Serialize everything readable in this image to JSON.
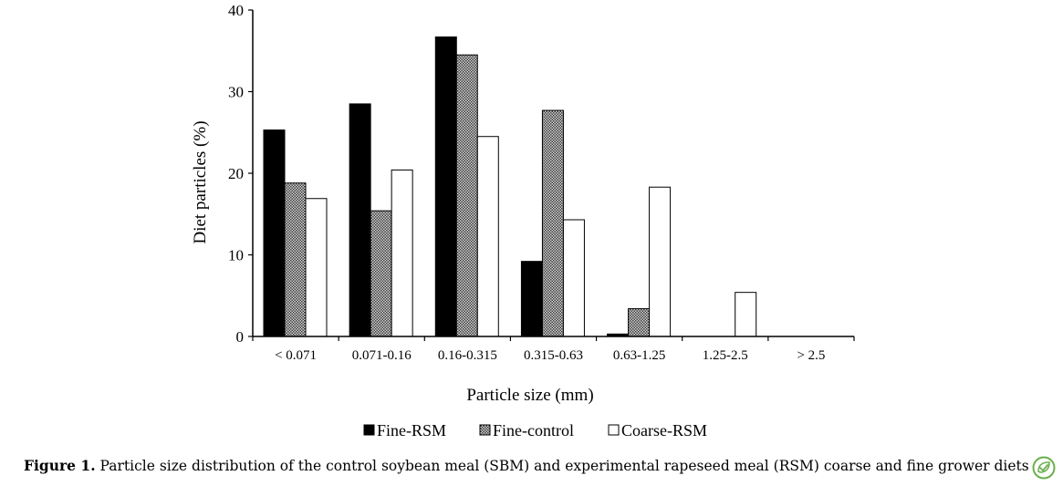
{
  "chart_data": {
    "type": "bar",
    "title": "",
    "xlabel": "Particle size (mm)",
    "ylabel": "Diet particles (%)",
    "ylim": [
      0,
      40
    ],
    "yticks": [
      0,
      10,
      20,
      30,
      40
    ],
    "grid": false,
    "legend_position": "bottom",
    "categories": [
      "< 0.071",
      "0.071-0.16",
      "0.16-0.315",
      "0.315-0.63",
      "0.63-1.25",
      "1.25-2.5",
      "> 2.5"
    ],
    "series": [
      {
        "name": "Fine-RSM",
        "values": [
          25.3,
          28.5,
          36.7,
          9.2,
          0.3,
          0,
          0
        ],
        "fill": "#000000",
        "pattern": "solid"
      },
      {
        "name": "Fine-control",
        "values": [
          18.8,
          15.4,
          34.5,
          27.7,
          3.4,
          0,
          0
        ],
        "fill": "#8c8c8c",
        "pattern": "checker"
      },
      {
        "name": "Coarse-RSM",
        "values": [
          16.9,
          20.4,
          24.5,
          14.3,
          18.3,
          5.4,
          0
        ],
        "fill": "#ffffff",
        "pattern": "outline"
      }
    ]
  },
  "caption": {
    "label": "Figure 1.",
    "text": " Particle size distribution of the control soybean meal (SBM) and experimental rapeseed meal (RSM) coarse and fine grower diets"
  },
  "badge": {
    "icon": "leaf-check-icon",
    "color": "#6ab04c"
  }
}
